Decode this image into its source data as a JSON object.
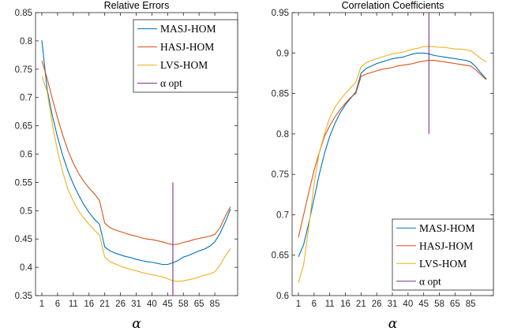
{
  "chart_data": [
    {
      "type": "line",
      "title": "Relative Errors",
      "xlabel": "α",
      "ylim": [
        0.35,
        0.85
      ],
      "yticks": [
        "0.35",
        "0.4",
        "0.45",
        "0.5",
        "0.55",
        "0.6",
        "0.65",
        "0.7",
        "0.75",
        "0.8",
        "0.85"
      ],
      "xticks": [
        "1",
        "6",
        "11",
        "16",
        "21",
        "26",
        "31",
        "40",
        "45",
        "58",
        "65",
        "85"
      ],
      "x": [
        1,
        2,
        3,
        4,
        5,
        6,
        7,
        8,
        9,
        10,
        11,
        12,
        13,
        14,
        15,
        16,
        17,
        18,
        19,
        20,
        21,
        22,
        23,
        24,
        25,
        26,
        27,
        28,
        29,
        30,
        31,
        32,
        33,
        34,
        35,
        36,
        37
      ],
      "legend_position": "top-right",
      "series": [
        {
          "name": "MASJ-HOM",
          "color": "#0072BD",
          "values": [
            0.801,
            0.715,
            0.668,
            0.63,
            0.597,
            0.57,
            0.547,
            0.528,
            0.511,
            0.497,
            0.485,
            0.476,
            0.436,
            0.429,
            0.425,
            0.422,
            0.419,
            0.417,
            0.414,
            0.412,
            0.41,
            0.409,
            0.407,
            0.405,
            0.405,
            0.408,
            0.412,
            0.418,
            0.421,
            0.425,
            0.429,
            0.432,
            0.437,
            0.445,
            0.46,
            0.48,
            0.503
          ]
        },
        {
          "name": "HASJ-HOM",
          "color": "#D95319",
          "values": [
            0.765,
            0.734,
            0.698,
            0.664,
            0.633,
            0.606,
            0.584,
            0.566,
            0.552,
            0.54,
            0.53,
            0.518,
            0.478,
            0.47,
            0.466,
            0.463,
            0.46,
            0.457,
            0.455,
            0.452,
            0.45,
            0.449,
            0.447,
            0.445,
            0.442,
            0.44,
            0.441,
            0.444,
            0.446,
            0.449,
            0.451,
            0.453,
            0.455,
            0.458,
            0.47,
            0.49,
            0.507
          ]
        },
        {
          "name": "LVS-HOM",
          "color": "#EDB120",
          "values": [
            0.738,
            0.711,
            0.653,
            0.605,
            0.568,
            0.537,
            0.517,
            0.5,
            0.487,
            0.476,
            0.466,
            0.457,
            0.418,
            0.41,
            0.406,
            0.402,
            0.399,
            0.396,
            0.394,
            0.391,
            0.389,
            0.387,
            0.385,
            0.383,
            0.38,
            0.376,
            0.375,
            0.376,
            0.378,
            0.38,
            0.383,
            0.386,
            0.388,
            0.392,
            0.404,
            0.42,
            0.433
          ]
        }
      ],
      "vline": {
        "name": "α opt",
        "color": "#7E2F8E",
        "x": 26,
        "y_range": [
          0.35,
          0.55
        ]
      }
    },
    {
      "type": "line",
      "title": "Correlation Coefficients",
      "xlabel": "α",
      "ylim": [
        0.6,
        0.95
      ],
      "yticks": [
        "0.6",
        "0.65",
        "0.7",
        "0.75",
        "0.8",
        "0.85",
        "0.9",
        "0.95"
      ],
      "xticks": [
        "1",
        "6",
        "11",
        "16",
        "21",
        "26",
        "31",
        "40",
        "45",
        "58",
        "65",
        "85"
      ],
      "x": [
        1,
        2,
        3,
        4,
        5,
        6,
        7,
        8,
        9,
        10,
        11,
        12,
        13,
        14,
        15,
        16,
        17,
        18,
        19,
        20,
        21,
        22,
        23,
        24,
        25,
        26,
        27,
        28,
        29,
        30,
        31,
        32,
        33,
        34,
        35,
        36,
        37
      ],
      "legend_position": "bottom-right",
      "series": [
        {
          "name": "MASJ-HOM",
          "color": "#0072BD",
          "values": [
            0.648,
            0.663,
            0.69,
            0.72,
            0.75,
            0.776,
            0.797,
            0.813,
            0.826,
            0.836,
            0.844,
            0.852,
            0.875,
            0.881,
            0.884,
            0.887,
            0.889,
            0.891,
            0.893,
            0.894,
            0.895,
            0.897,
            0.899,
            0.9,
            0.9,
            0.899,
            0.897,
            0.896,
            0.895,
            0.894,
            0.893,
            0.892,
            0.891,
            0.889,
            0.883,
            0.875,
            0.868
          ]
        },
        {
          "name": "HASJ-HOM",
          "color": "#D95319",
          "values": [
            0.672,
            0.7,
            0.728,
            0.755,
            0.777,
            0.797,
            0.81,
            0.821,
            0.83,
            0.838,
            0.845,
            0.85,
            0.871,
            0.874,
            0.876,
            0.878,
            0.88,
            0.881,
            0.882,
            0.884,
            0.885,
            0.886,
            0.887,
            0.889,
            0.89,
            0.891,
            0.891,
            0.89,
            0.889,
            0.888,
            0.887,
            0.886,
            0.885,
            0.884,
            0.879,
            0.873,
            0.867
          ]
        },
        {
          "name": "LVS-HOM",
          "color": "#EDB120",
          "values": [
            0.616,
            0.638,
            0.686,
            0.738,
            0.777,
            0.8,
            0.82,
            0.833,
            0.842,
            0.85,
            0.857,
            0.864,
            0.883,
            0.888,
            0.891,
            0.893,
            0.895,
            0.897,
            0.899,
            0.9,
            0.901,
            0.903,
            0.905,
            0.906,
            0.908,
            0.908,
            0.908,
            0.907,
            0.907,
            0.906,
            0.905,
            0.905,
            0.904,
            0.903,
            0.898,
            0.893,
            0.889
          ]
        }
      ],
      "vline": {
        "name": "α opt",
        "color": "#7E2F8E",
        "x": 26,
        "y_range": [
          0.8,
          0.95
        ]
      }
    }
  ]
}
